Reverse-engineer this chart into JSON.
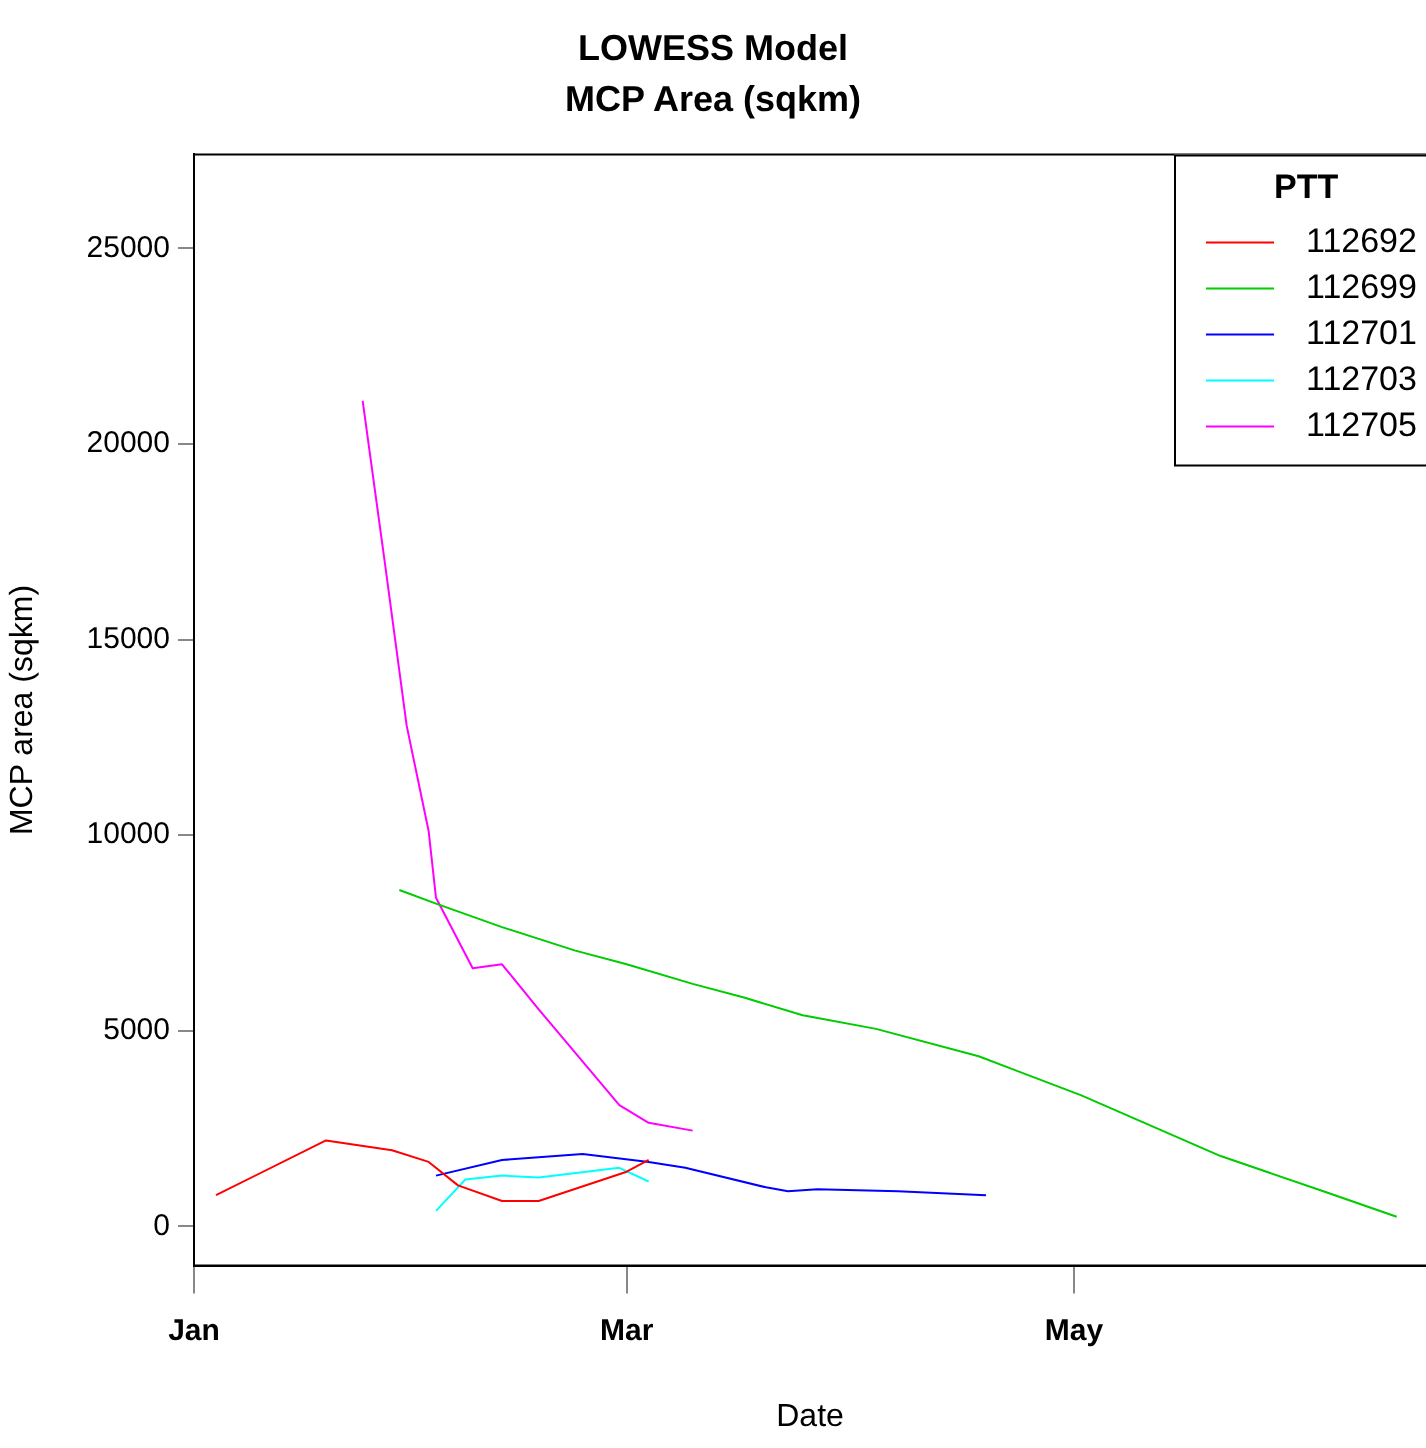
{
  "chart_data": {
    "type": "line",
    "title": "LOWESS Model",
    "subtitle": "MCP Area (sqkm)",
    "xlabel": "Date",
    "ylabel": "MCP area (sqkm)",
    "legend_title": "PTT",
    "legend": "top right",
    "grid": false,
    "marker": "none",
    "line_style": "solid",
    "xlim": [
      "--01-01",
      "--06-18"
    ],
    "xticks": [
      {
        "value": "--01-01",
        "label": "Jan"
      },
      {
        "value": "--03-01",
        "label": "Mar"
      },
      {
        "value": "--05-01",
        "label": "May"
      }
    ],
    "ylim": [
      -1000,
      27400
    ],
    "yticks": [
      0,
      5000,
      10000,
      15000,
      20000,
      25000
    ],
    "series": [
      {
        "name": "112692",
        "color": "#ff0000",
        "x": [
          "--01-04",
          "--01-19",
          "--01-28",
          "--02-02",
          "--02-06",
          "--02-12",
          "--02-17",
          "--03-01",
          "--03-04"
        ],
        "values": [
          800,
          2200,
          1950,
          1650,
          1050,
          650,
          650,
          1400,
          1700
        ]
      },
      {
        "name": "112699",
        "color": "#00cc00",
        "x": [
          "--01-29",
          "--02-03",
          "--02-12",
          "--02-22",
          "--03-01",
          "--03-10",
          "--03-17",
          "--03-25",
          "--04-04",
          "--04-18",
          "--05-02",
          "--05-21",
          "--06-04",
          "--06-14"
        ],
        "values": [
          8600,
          8250,
          7650,
          7050,
          6700,
          6200,
          5850,
          5400,
          5050,
          4350,
          3350,
          1800,
          900,
          250
        ]
      },
      {
        "name": "112701",
        "color": "#0000ff",
        "x": [
          "--02-03",
          "--02-12",
          "--02-23",
          "--03-04",
          "--03-09",
          "--03-20",
          "--03-23",
          "--03-27",
          "--04-07",
          "--04-19"
        ],
        "values": [
          1300,
          1700,
          1850,
          1650,
          1500,
          1000,
          900,
          950,
          900,
          800
        ]
      },
      {
        "name": "112703",
        "color": "#00ffff",
        "x": [
          "--02-03",
          "--02-07",
          "--02-12",
          "--02-17",
          "--02-28",
          "--03-04"
        ],
        "values": [
          400,
          1200,
          1300,
          1250,
          1500,
          1150
        ]
      },
      {
        "name": "112705",
        "color": "#ff00ff",
        "x": [
          "--01-24",
          "--01-27",
          "--01-30",
          "--02-02",
          "--02-03",
          "--02-08",
          "--02-12",
          "--02-17",
          "--02-28",
          "--03-04",
          "--03-10"
        ],
        "values": [
          21100,
          17000,
          12800,
          10100,
          8400,
          6600,
          6700,
          5550,
          3100,
          2650,
          2450
        ]
      }
    ]
  }
}
